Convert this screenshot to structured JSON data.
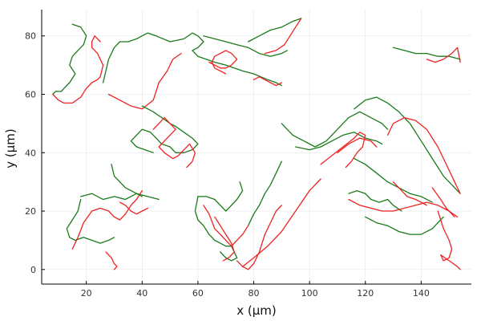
{
  "chart_data": {
    "type": "line",
    "xlabel": "x (µm)",
    "ylabel": "y (µm)",
    "xlim": [
      4,
      158
    ],
    "ylim": [
      -5,
      89
    ],
    "xticks": [
      20,
      40,
      60,
      80,
      100,
      120,
      140
    ],
    "yticks": [
      0,
      20,
      40,
      60,
      80
    ],
    "grid": true,
    "legend": "none",
    "colors": {
      "green": "#1a7a1a",
      "red": "#ee2222"
    },
    "series": [
      {
        "color": "green",
        "x": [
          15,
          18,
          20,
          19,
          17,
          15,
          14,
          16,
          14,
          12,
          11,
          9,
          8
        ],
        "y": [
          84,
          83,
          80,
          77,
          75,
          73,
          70,
          67,
          64,
          62,
          61,
          61,
          60
        ]
      },
      {
        "color": "red",
        "x": [
          8,
          10,
          12,
          15,
          18,
          20,
          22,
          24,
          25,
          26,
          24,
          22,
          22,
          23,
          25
        ],
        "y": [
          60,
          58,
          57,
          57,
          59,
          62,
          64,
          65,
          66,
          70,
          74,
          76,
          78,
          80,
          78
        ]
      },
      {
        "color": "green",
        "x": [
          26,
          28,
          30,
          32,
          35,
          38,
          40,
          42,
          45,
          50,
          55,
          58,
          60,
          62,
          60,
          58,
          60,
          63,
          66,
          70,
          73,
          76,
          80,
          85,
          88,
          90
        ],
        "y": [
          64,
          72,
          76,
          78,
          78,
          79,
          80,
          81,
          80,
          78,
          79,
          81,
          80,
          78,
          76,
          75,
          73,
          72,
          71,
          70,
          69,
          68,
          67,
          65,
          64,
          63
        ]
      },
      {
        "color": "green",
        "x": [
          62,
          66,
          70,
          74,
          78,
          82,
          86,
          90,
          92
        ],
        "y": [
          80,
          79,
          78,
          77,
          76,
          74,
          73,
          74,
          75
        ]
      },
      {
        "color": "red",
        "x": [
          64,
          66,
          68,
          70,
          72,
          74,
          72,
          70,
          68,
          66,
          65,
          66,
          68,
          70
        ],
        "y": [
          71,
          70,
          69,
          69,
          70,
          72,
          74,
          75,
          74,
          73,
          71,
          69,
          68,
          67
        ]
      },
      {
        "color": "red",
        "x": [
          80,
          82,
          84,
          86,
          88,
          90
        ],
        "y": [
          65,
          66,
          65,
          64,
          63,
          64
        ]
      },
      {
        "color": "green",
        "x": [
          78,
          82,
          86,
          90,
          94,
          97
        ],
        "y": [
          78,
          80,
          82,
          83,
          85,
          86
        ]
      },
      {
        "color": "red",
        "x": [
          84,
          88,
          91,
          93,
          95,
          97
        ],
        "y": [
          74,
          75,
          77,
          80,
          83,
          86
        ]
      },
      {
        "color": "red",
        "x": [
          28,
          32,
          36,
          40,
          44,
          46,
          49,
          51,
          54
        ],
        "y": [
          60,
          58,
          56,
          55,
          58,
          64,
          68,
          72,
          74
        ]
      },
      {
        "color": "green",
        "x": [
          40,
          44,
          47,
          50,
          52,
          55,
          58,
          60,
          58,
          55,
          52,
          50,
          47,
          45,
          43,
          40,
          38,
          36,
          38,
          41,
          44
        ],
        "y": [
          56,
          54,
          52,
          50,
          49,
          47,
          45,
          43,
          41,
          40,
          40,
          42,
          43,
          45,
          47,
          48,
          46,
          44,
          42,
          41,
          40
        ]
      },
      {
        "color": "red",
        "x": [
          44,
          46,
          48,
          50,
          52,
          50,
          48,
          46,
          48,
          51,
          53,
          55,
          57,
          59,
          58,
          56
        ],
        "y": [
          48,
          50,
          52,
          50,
          48,
          46,
          44,
          42,
          40,
          38,
          39,
          41,
          43,
          40,
          37,
          35
        ]
      },
      {
        "color": "green",
        "x": [
          18,
          22,
          26,
          30,
          34,
          38,
          42,
          46
        ],
        "y": [
          25,
          26,
          24,
          25,
          24,
          26,
          25,
          24
        ]
      },
      {
        "color": "green",
        "x": [
          18,
          17,
          15,
          13,
          14,
          16,
          19,
          22,
          25,
          28,
          30
        ],
        "y": [
          24,
          20,
          17,
          14,
          11,
          10,
          11,
          10,
          9,
          10,
          11
        ]
      },
      {
        "color": "red",
        "x": [
          15,
          17,
          19,
          22,
          25,
          28,
          30,
          32,
          34,
          36,
          38,
          40
        ],
        "y": [
          7,
          11,
          16,
          20,
          21,
          20,
          18,
          17,
          19,
          22,
          24,
          27
        ]
      },
      {
        "color": "red",
        "x": [
          32,
          34,
          36,
          38,
          40,
          42
        ],
        "y": [
          23,
          22,
          20,
          19,
          20,
          21
        ]
      },
      {
        "color": "green",
        "x": [
          29,
          30,
          32,
          34,
          36,
          38,
          40
        ],
        "y": [
          36,
          32,
          30,
          28,
          27,
          26,
          25
        ]
      },
      {
        "color": "red",
        "x": [
          27,
          29,
          30,
          31,
          30
        ],
        "y": [
          6,
          4,
          2,
          1,
          0
        ]
      },
      {
        "color": "green",
        "x": [
          60,
          63,
          66,
          68,
          70,
          72,
          74,
          76,
          75
        ],
        "y": [
          25,
          25,
          24,
          22,
          20,
          22,
          24,
          27,
          30
        ]
      },
      {
        "color": "green",
        "x": [
          60,
          59,
          60,
          62,
          64,
          66,
          68,
          70,
          72,
          74,
          72,
          70,
          68
        ],
        "y": [
          25,
          20,
          17,
          15,
          12,
          10,
          9,
          8,
          8,
          4,
          3,
          4,
          6
        ]
      },
      {
        "color": "red",
        "x": [
          62,
          64,
          66,
          68,
          70,
          72,
          74,
          76,
          78
        ],
        "y": [
          22,
          19,
          14,
          12,
          10,
          8,
          10,
          12,
          15
        ]
      },
      {
        "color": "red",
        "x": [
          66,
          68,
          70,
          72,
          73,
          71,
          69
        ],
        "y": [
          18,
          15,
          12,
          9,
          6,
          4,
          3
        ]
      },
      {
        "color": "green",
        "x": [
          78,
          80,
          82,
          84,
          86,
          88,
          90
        ],
        "y": [
          15,
          19,
          22,
          26,
          29,
          33,
          37
        ]
      },
      {
        "color": "red",
        "x": [
          74,
          76,
          78,
          80,
          82,
          84,
          86,
          88,
          90
        ],
        "y": [
          3,
          1,
          0,
          2,
          6,
          12,
          16,
          20,
          22
        ]
      },
      {
        "color": "red",
        "x": [
          76,
          80,
          85,
          90,
          95,
          100,
          104
        ],
        "y": [
          1,
          4,
          8,
          13,
          20,
          27,
          31
        ]
      },
      {
        "color": "green",
        "x": [
          90,
          94,
          98,
          102,
          106,
          110,
          114,
          118,
          122,
          126,
          128
        ],
        "y": [
          50,
          46,
          44,
          42,
          44,
          48,
          52,
          54,
          52,
          50,
          48
        ]
      },
      {
        "color": "green",
        "x": [
          95,
          100,
          104,
          108,
          112,
          116,
          120,
          124,
          126
        ],
        "y": [
          42,
          41,
          42,
          44,
          46,
          47,
          45,
          44,
          43
        ]
      },
      {
        "color": "red",
        "x": [
          104,
          108,
          112,
          116,
          118,
          120,
          119,
          117,
          115,
          113
        ],
        "y": [
          36,
          39,
          42,
          45,
          47,
          46,
          42,
          40,
          37,
          35
        ]
      },
      {
        "color": "red",
        "x": [
          110,
          114,
          118,
          122,
          124
        ],
        "y": [
          40,
          43,
          45,
          44,
          42
        ]
      },
      {
        "color": "green",
        "x": [
          116,
          120,
          124,
          128,
          132,
          136,
          140,
          144,
          148,
          152,
          154
        ],
        "y": [
          55,
          58,
          59,
          57,
          54,
          50,
          44,
          38,
          32,
          28,
          26
        ]
      },
      {
        "color": "red",
        "x": [
          128,
          130,
          134,
          138,
          142,
          146,
          150,
          152,
          154
        ],
        "y": [
          46,
          50,
          52,
          51,
          48,
          42,
          34,
          30,
          26
        ]
      },
      {
        "color": "green",
        "x": [
          116,
          120,
          124,
          128,
          132,
          136,
          140,
          144
        ],
        "y": [
          38,
          36,
          33,
          30,
          28,
          26,
          25,
          23
        ]
      },
      {
        "color": "green",
        "x": [
          114,
          117,
          120,
          122,
          125,
          128,
          130,
          133
        ],
        "y": [
          26,
          27,
          26,
          24,
          23,
          24,
          22,
          20
        ]
      },
      {
        "color": "red",
        "x": [
          114,
          118,
          122,
          126,
          130,
          134,
          138,
          142,
          146,
          150,
          153
        ],
        "y": [
          24,
          22,
          21,
          20,
          20,
          21,
          22,
          23,
          22,
          20,
          18
        ]
      },
      {
        "color": "green",
        "x": [
          120,
          124,
          128,
          132,
          136,
          140,
          144,
          146,
          148
        ],
        "y": [
          18,
          16,
          15,
          13,
          12,
          12,
          14,
          16,
          18
        ]
      },
      {
        "color": "red",
        "x": [
          130,
          133,
          135,
          138,
          140,
          142
        ],
        "y": [
          30,
          27,
          25,
          24,
          23,
          22
        ]
      },
      {
        "color": "red",
        "x": [
          146,
          148,
          150,
          151,
          150,
          148,
          147,
          150,
          153,
          154
        ],
        "y": [
          20,
          14,
          10,
          7,
          4,
          3,
          5,
          3,
          1,
          0
        ]
      },
      {
        "color": "red",
        "x": [
          144,
          147,
          149,
          152
        ],
        "y": [
          28,
          24,
          21,
          18
        ]
      },
      {
        "color": "green",
        "x": [
          130,
          134,
          138,
          142,
          146,
          150,
          154
        ],
        "y": [
          76,
          75,
          74,
          74,
          73,
          73,
          72
        ]
      },
      {
        "color": "red",
        "x": [
          142,
          145,
          148,
          151,
          153,
          154
        ],
        "y": [
          72,
          71,
          72,
          74,
          76,
          71
        ]
      }
    ]
  }
}
